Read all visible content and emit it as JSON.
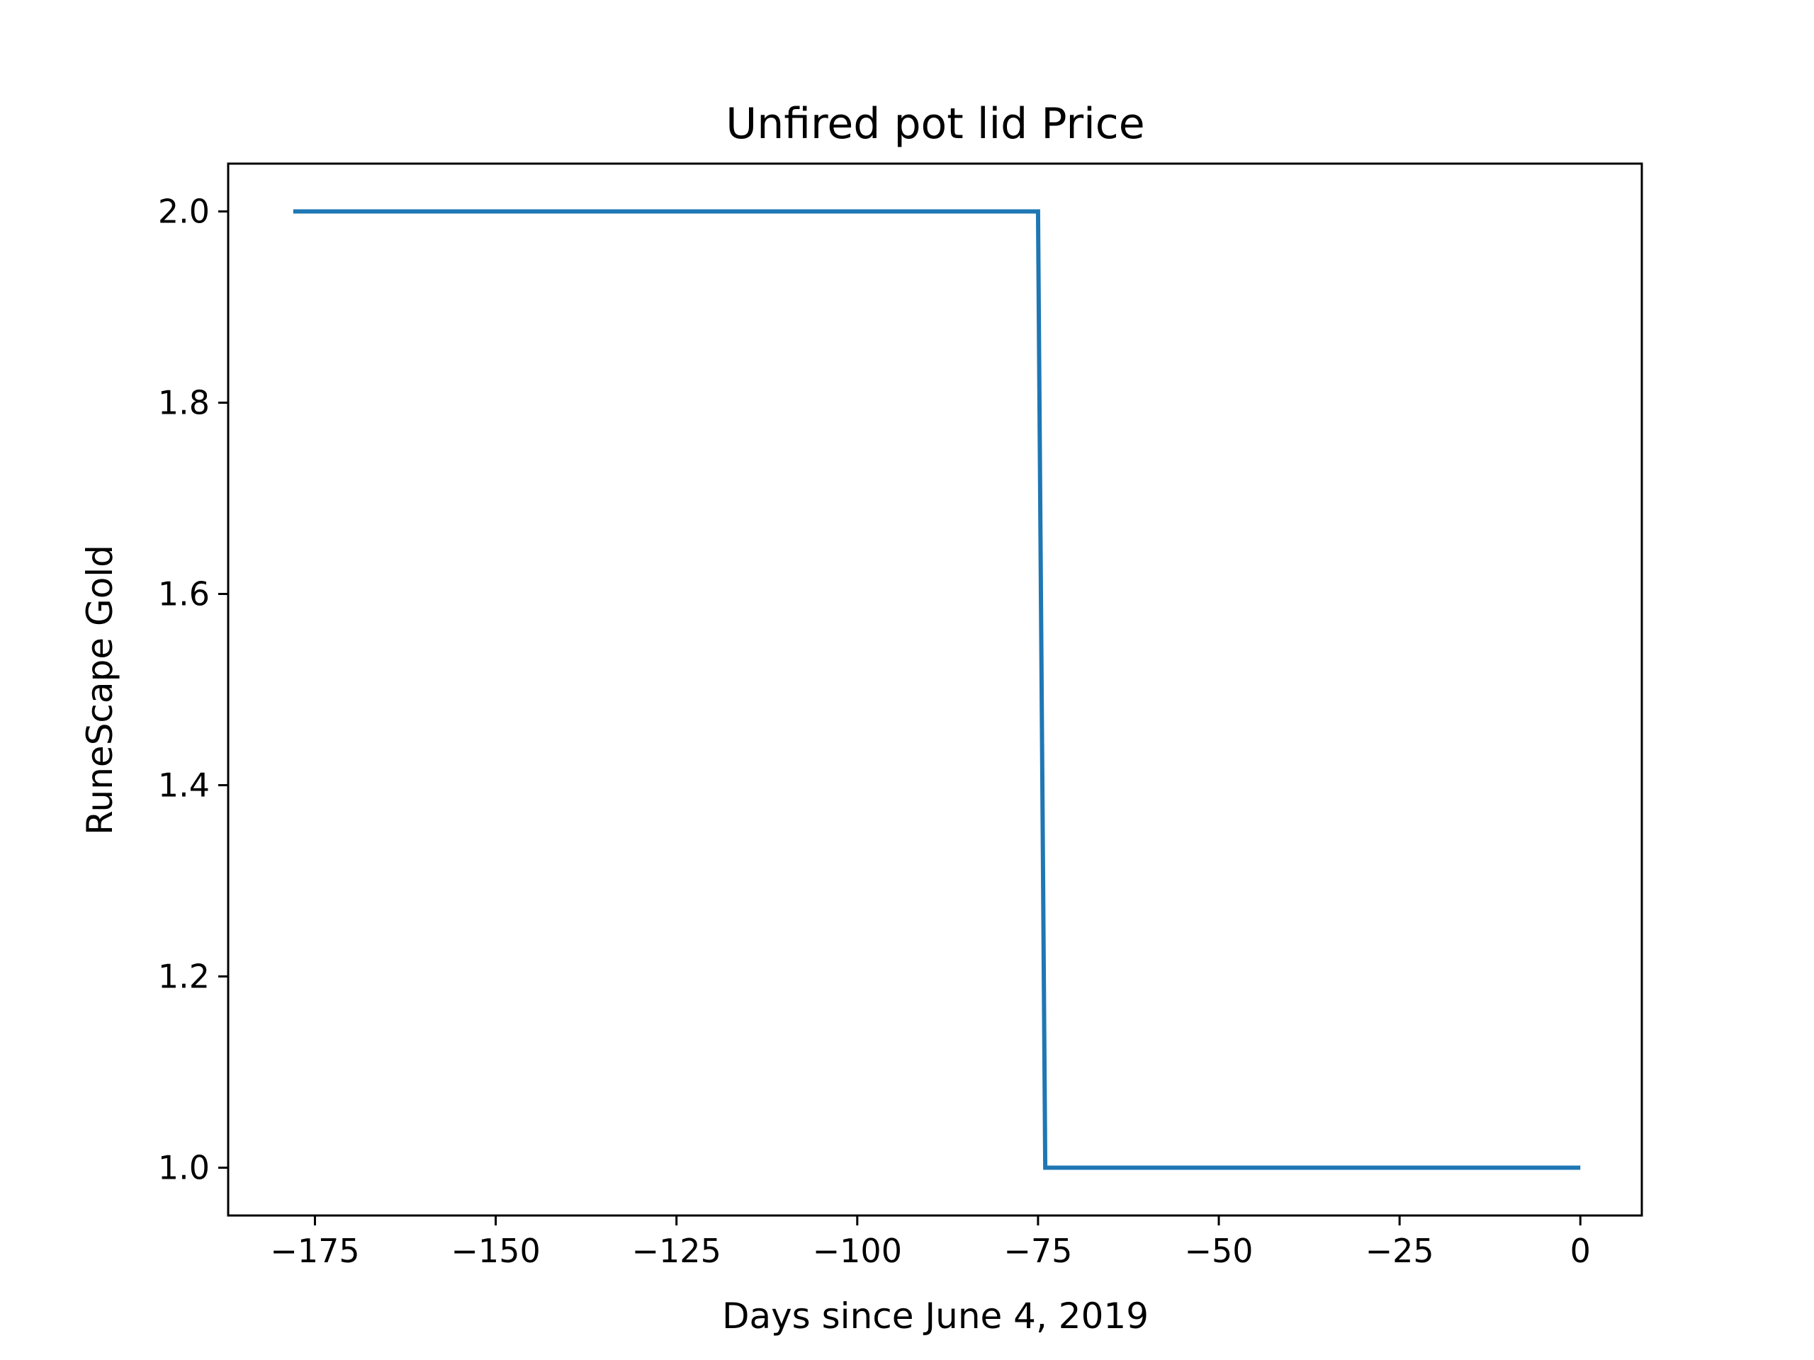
{
  "chart_data": {
    "type": "line",
    "title": "Unfired pot lid Price",
    "xlabel": "Days since June 4, 2019",
    "ylabel": "RuneScape Gold",
    "xlim": [
      -187,
      8.5
    ],
    "ylim": [
      0.95,
      2.05
    ],
    "xticks": [
      -175,
      -150,
      -125,
      -100,
      -75,
      -50,
      -25,
      0
    ],
    "xtick_labels": [
      "−175",
      "−150",
      "−125",
      "−100",
      "−75",
      "−50",
      "−25",
      "0"
    ],
    "yticks": [
      1.0,
      1.2,
      1.4,
      1.6,
      1.8,
      2.0
    ],
    "ytick_labels": [
      "1.0",
      "1.2",
      "1.4",
      "1.6",
      "1.8",
      "2.0"
    ],
    "grid": false,
    "series": [
      {
        "color": "#1f77b4",
        "x": [
          -178,
          -75,
          -74,
          0
        ],
        "y": [
          2.0,
          2.0,
          1.0,
          1.0
        ]
      }
    ]
  }
}
